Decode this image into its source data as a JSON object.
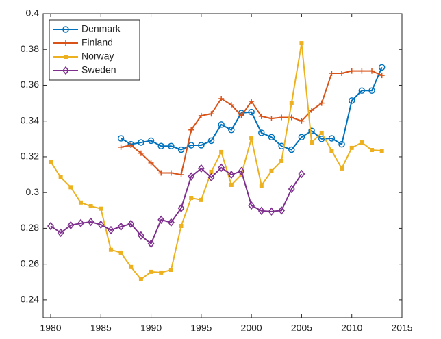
{
  "chart_data": {
    "type": "line",
    "xlim": [
      1979.25,
      2015
    ],
    "xticks": [
      1980,
      1985,
      1990,
      1995,
      2000,
      2005,
      2010,
      2015
    ],
    "ylim": [
      0.23,
      0.4
    ],
    "yticks": [
      0.24,
      0.26,
      0.28,
      0.3,
      0.32,
      0.34,
      0.36,
      0.38,
      0.4
    ],
    "legend": "upper-left",
    "series": [
      {
        "name": "Denmark",
        "color": "#0072bd",
        "marker": "circle",
        "x": [
          1987,
          1988,
          1989,
          1990,
          1991,
          1992,
          1993,
          1994,
          1995,
          1996,
          1997,
          1998,
          1999,
          2000,
          2001,
          2002,
          2003,
          2004,
          2005,
          2006,
          2007,
          2008,
          2009,
          2010,
          2011,
          2012,
          2013
        ],
        "values": [
          0.3303,
          0.327,
          0.328,
          0.329,
          0.326,
          0.326,
          0.324,
          0.3265,
          0.3265,
          0.329,
          0.338,
          0.335,
          0.3445,
          0.345,
          0.3334,
          0.331,
          0.326,
          0.324,
          0.331,
          0.3345,
          0.33,
          0.3303,
          0.327,
          0.3514,
          0.357,
          0.357,
          0.37
        ]
      },
      {
        "name": "Finland",
        "color": "#d95319",
        "marker": "plus",
        "x": [
          1987,
          1988,
          1989,
          1990,
          1991,
          1992,
          1993,
          1994,
          1995,
          1996,
          1997,
          1998,
          1999,
          2000,
          2001,
          2002,
          2003,
          2004,
          2005,
          2006,
          2007,
          2008,
          2009,
          2010,
          2011,
          2012,
          2013
        ],
        "values": [
          0.3254,
          0.3265,
          0.322,
          0.3166,
          0.311,
          0.311,
          0.31,
          0.335,
          0.343,
          0.344,
          0.3525,
          0.349,
          0.343,
          0.351,
          0.3426,
          0.3414,
          0.342,
          0.342,
          0.34,
          0.346,
          0.35,
          0.3667,
          0.3667,
          0.368,
          0.368,
          0.368,
          0.3655
        ]
      },
      {
        "name": "Norway",
        "color": "#edb120",
        "marker": "square",
        "x": [
          1980,
          1981,
          1982,
          1983,
          1984,
          1985,
          1986,
          1987,
          1988,
          1989,
          1990,
          1991,
          1992,
          1993,
          1994,
          1995,
          1996,
          1997,
          1998,
          1999,
          2000,
          2001,
          2002,
          2003,
          2004,
          2005,
          2006,
          2007,
          2008,
          2009,
          2010,
          2011,
          2012,
          2013
        ],
        "values": [
          0.3173,
          0.3085,
          0.303,
          0.2944,
          0.2924,
          0.291,
          0.268,
          0.2664,
          0.2584,
          0.2515,
          0.2557,
          0.2553,
          0.2568,
          0.2813,
          0.297,
          0.2959,
          0.3116,
          0.3227,
          0.3043,
          0.31,
          0.3303,
          0.3039,
          0.312,
          0.3177,
          0.35,
          0.3835,
          0.328,
          0.3334,
          0.3234,
          0.3135,
          0.325,
          0.328,
          0.3238,
          0.3234
        ]
      },
      {
        "name": "Sweden",
        "color": "#7e2f8e",
        "marker": "diamond",
        "x": [
          1980,
          1981,
          1982,
          1983,
          1984,
          1985,
          1986,
          1987,
          1988,
          1989,
          1990,
          1991,
          1992,
          1993,
          1994,
          1995,
          1996,
          1997,
          1998,
          1999,
          2000,
          2001,
          2002,
          2003,
          2004,
          2005
        ],
        "values": [
          0.2813,
          0.2775,
          0.2817,
          0.2829,
          0.2836,
          0.2821,
          0.279,
          0.281,
          0.2825,
          0.276,
          0.2714,
          0.2848,
          0.2833,
          0.2913,
          0.309,
          0.3135,
          0.3085,
          0.3139,
          0.31,
          0.312,
          0.2928,
          0.2898,
          0.2894,
          0.29,
          0.302,
          0.3104
        ]
      }
    ]
  }
}
